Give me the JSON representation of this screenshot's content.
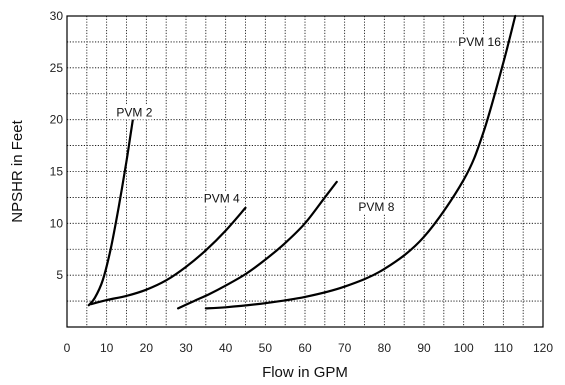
{
  "chart_data": {
    "type": "line",
    "title": "",
    "xlabel": "Flow in GPM",
    "ylabel": "NPSHR in Feet",
    "xlim": [
      0,
      120
    ],
    "ylim": [
      0,
      30
    ],
    "x_ticks": [
      0,
      10,
      20,
      30,
      40,
      50,
      60,
      70,
      80,
      90,
      100,
      110,
      120
    ],
    "x_tick_labels": [
      "0",
      "10",
      "20",
      "30",
      "40",
      "50",
      "60",
      "70",
      "80",
      "90",
      "100",
      "110",
      "120"
    ],
    "y_ticks": [
      5,
      10,
      15,
      20,
      25,
      30
    ],
    "y_tick_labels": [
      "5",
      "10",
      "15",
      "20",
      "25",
      "30"
    ],
    "grid": true,
    "series": [
      {
        "name": "PVM 2",
        "x": [
          5.5,
          7,
          9,
          11,
          13,
          15,
          16,
          17
        ],
        "y": [
          2.1,
          2.8,
          4.5,
          7.5,
          11.5,
          16,
          18.5,
          21
        ]
      },
      {
        "name": "PVM 4",
        "x": [
          6,
          10,
          15,
          20,
          25,
          30,
          35,
          40,
          45
        ],
        "y": [
          2.2,
          2.6,
          3.0,
          3.6,
          4.5,
          5.8,
          7.4,
          9.3,
          11.5
        ]
      },
      {
        "name": "PVM 8",
        "x": [
          28,
          32,
          36,
          40,
          45,
          50,
          55,
          60,
          65,
          68
        ],
        "y": [
          1.8,
          2.5,
          3.2,
          4.0,
          5.1,
          6.5,
          8.1,
          10.0,
          12.5,
          14
        ]
      },
      {
        "name": "PVM 16",
        "x": [
          35,
          40,
          50,
          60,
          70,
          80,
          90,
          100,
          105,
          110,
          113
        ],
        "y": [
          1.8,
          1.9,
          2.3,
          2.9,
          3.9,
          5.6,
          8.7,
          14.2,
          18.8,
          25.5,
          30
        ]
      }
    ],
    "series_label_positions": {
      "PVM 2": {
        "x": 17,
        "y": 20.3
      },
      "PVM 4": {
        "x": 39,
        "y": 12
      },
      "PVM 8": {
        "x": 78,
        "y": 11.2
      },
      "PVM 16": {
        "x": 104,
        "y": 27.1
      }
    }
  }
}
